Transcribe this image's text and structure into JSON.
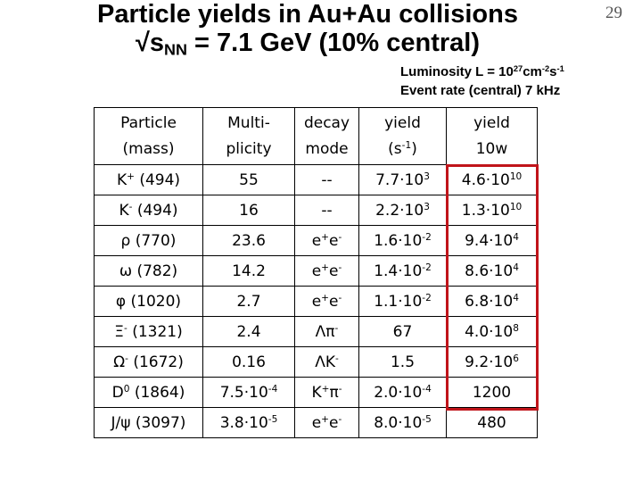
{
  "header": {
    "title_lines": [
      [
        "Particle yields in Au+Au collisions"
      ],
      [
        "√s",
        {
          "sub": "NN"
        },
        " = 7.1 GeV (10% central)"
      ]
    ],
    "page_number": "29",
    "notes": [
      [
        "Luminosity  L = 10",
        {
          "sup": "27"
        },
        "cm",
        {
          "sup": "-2"
        },
        "s",
        {
          "sup": "-1"
        }
      ],
      [
        "Event rate (central) 7 kHz"
      ]
    ]
  },
  "table": {
    "columns": [
      [
        [
          "Particle"
        ],
        [
          "(mass)"
        ]
      ],
      [
        [
          "Multi-"
        ],
        [
          "plicity"
        ]
      ],
      [
        [
          "decay"
        ],
        [
          "mode"
        ]
      ],
      [
        [
          "yield"
        ],
        [
          "(s",
          {
            "sup": "-1"
          },
          ")"
        ]
      ],
      [
        [
          "yield"
        ],
        [
          "10w"
        ]
      ]
    ],
    "rows": [
      [
        [
          "K",
          {
            "sup": "+"
          },
          " (494)"
        ],
        [
          "55"
        ],
        [
          "--"
        ],
        [
          "7.7·10",
          {
            "sup": "3"
          }
        ],
        [
          "4.6·10",
          {
            "sup": "10"
          }
        ]
      ],
      [
        [
          "K",
          {
            "sup": "-"
          },
          " (494)"
        ],
        [
          "16"
        ],
        [
          "--"
        ],
        [
          "2.2·10",
          {
            "sup": "3"
          }
        ],
        [
          "1.3·10",
          {
            "sup": "10"
          }
        ]
      ],
      [
        [
          "ρ (770)"
        ],
        [
          "23.6"
        ],
        [
          "e",
          {
            "sup": "+"
          },
          "e",
          {
            "sup": "-"
          }
        ],
        [
          "1.6·10",
          {
            "sup": "-2"
          }
        ],
        [
          "9.4·10",
          {
            "sup": "4"
          }
        ]
      ],
      [
        [
          "ω (782)"
        ],
        [
          "14.2"
        ],
        [
          "e",
          {
            "sup": "+"
          },
          "e",
          {
            "sup": "-"
          }
        ],
        [
          "1.4·10",
          {
            "sup": "-2"
          }
        ],
        [
          "8.6·10",
          {
            "sup": "4"
          }
        ]
      ],
      [
        [
          "φ (1020)"
        ],
        [
          "2.7"
        ],
        [
          "e",
          {
            "sup": "+"
          },
          "e",
          {
            "sup": "-"
          }
        ],
        [
          "1.1·10",
          {
            "sup": "-2"
          }
        ],
        [
          "6.8·10",
          {
            "sup": "4"
          }
        ]
      ],
      [
        [
          "Ξ",
          {
            "sup": "-"
          },
          " (1321)"
        ],
        [
          "2.4"
        ],
        [
          "Λπ",
          {
            "sup": "-"
          }
        ],
        [
          "67"
        ],
        [
          "4.0·10",
          {
            "sup": "8"
          }
        ]
      ],
      [
        [
          "Ω",
          {
            "sup": "-"
          },
          " (1672)"
        ],
        [
          "0.16"
        ],
        [
          "ΛK",
          {
            "sup": "-"
          }
        ],
        [
          "1.5"
        ],
        [
          "9.2·10",
          {
            "sup": "6"
          }
        ]
      ],
      [
        [
          "D",
          {
            "sup": "0"
          },
          " (1864)"
        ],
        [
          "7.5·10",
          {
            "sup": "-4"
          }
        ],
        [
          "K",
          {
            "sup": "+"
          },
          "π",
          {
            "sup": "-"
          }
        ],
        [
          "2.0·10",
          {
            "sup": "-4"
          }
        ],
        [
          "1200"
        ]
      ],
      [
        [
          "J/ψ (3097)"
        ],
        [
          "3.8·10",
          {
            "sup": "-5"
          }
        ],
        [
          "e",
          {
            "sup": "+"
          },
          "e",
          {
            "sup": "-"
          }
        ],
        [
          "8.0·10",
          {
            "sup": "-5"
          }
        ],
        [
          "480"
        ]
      ]
    ]
  }
}
